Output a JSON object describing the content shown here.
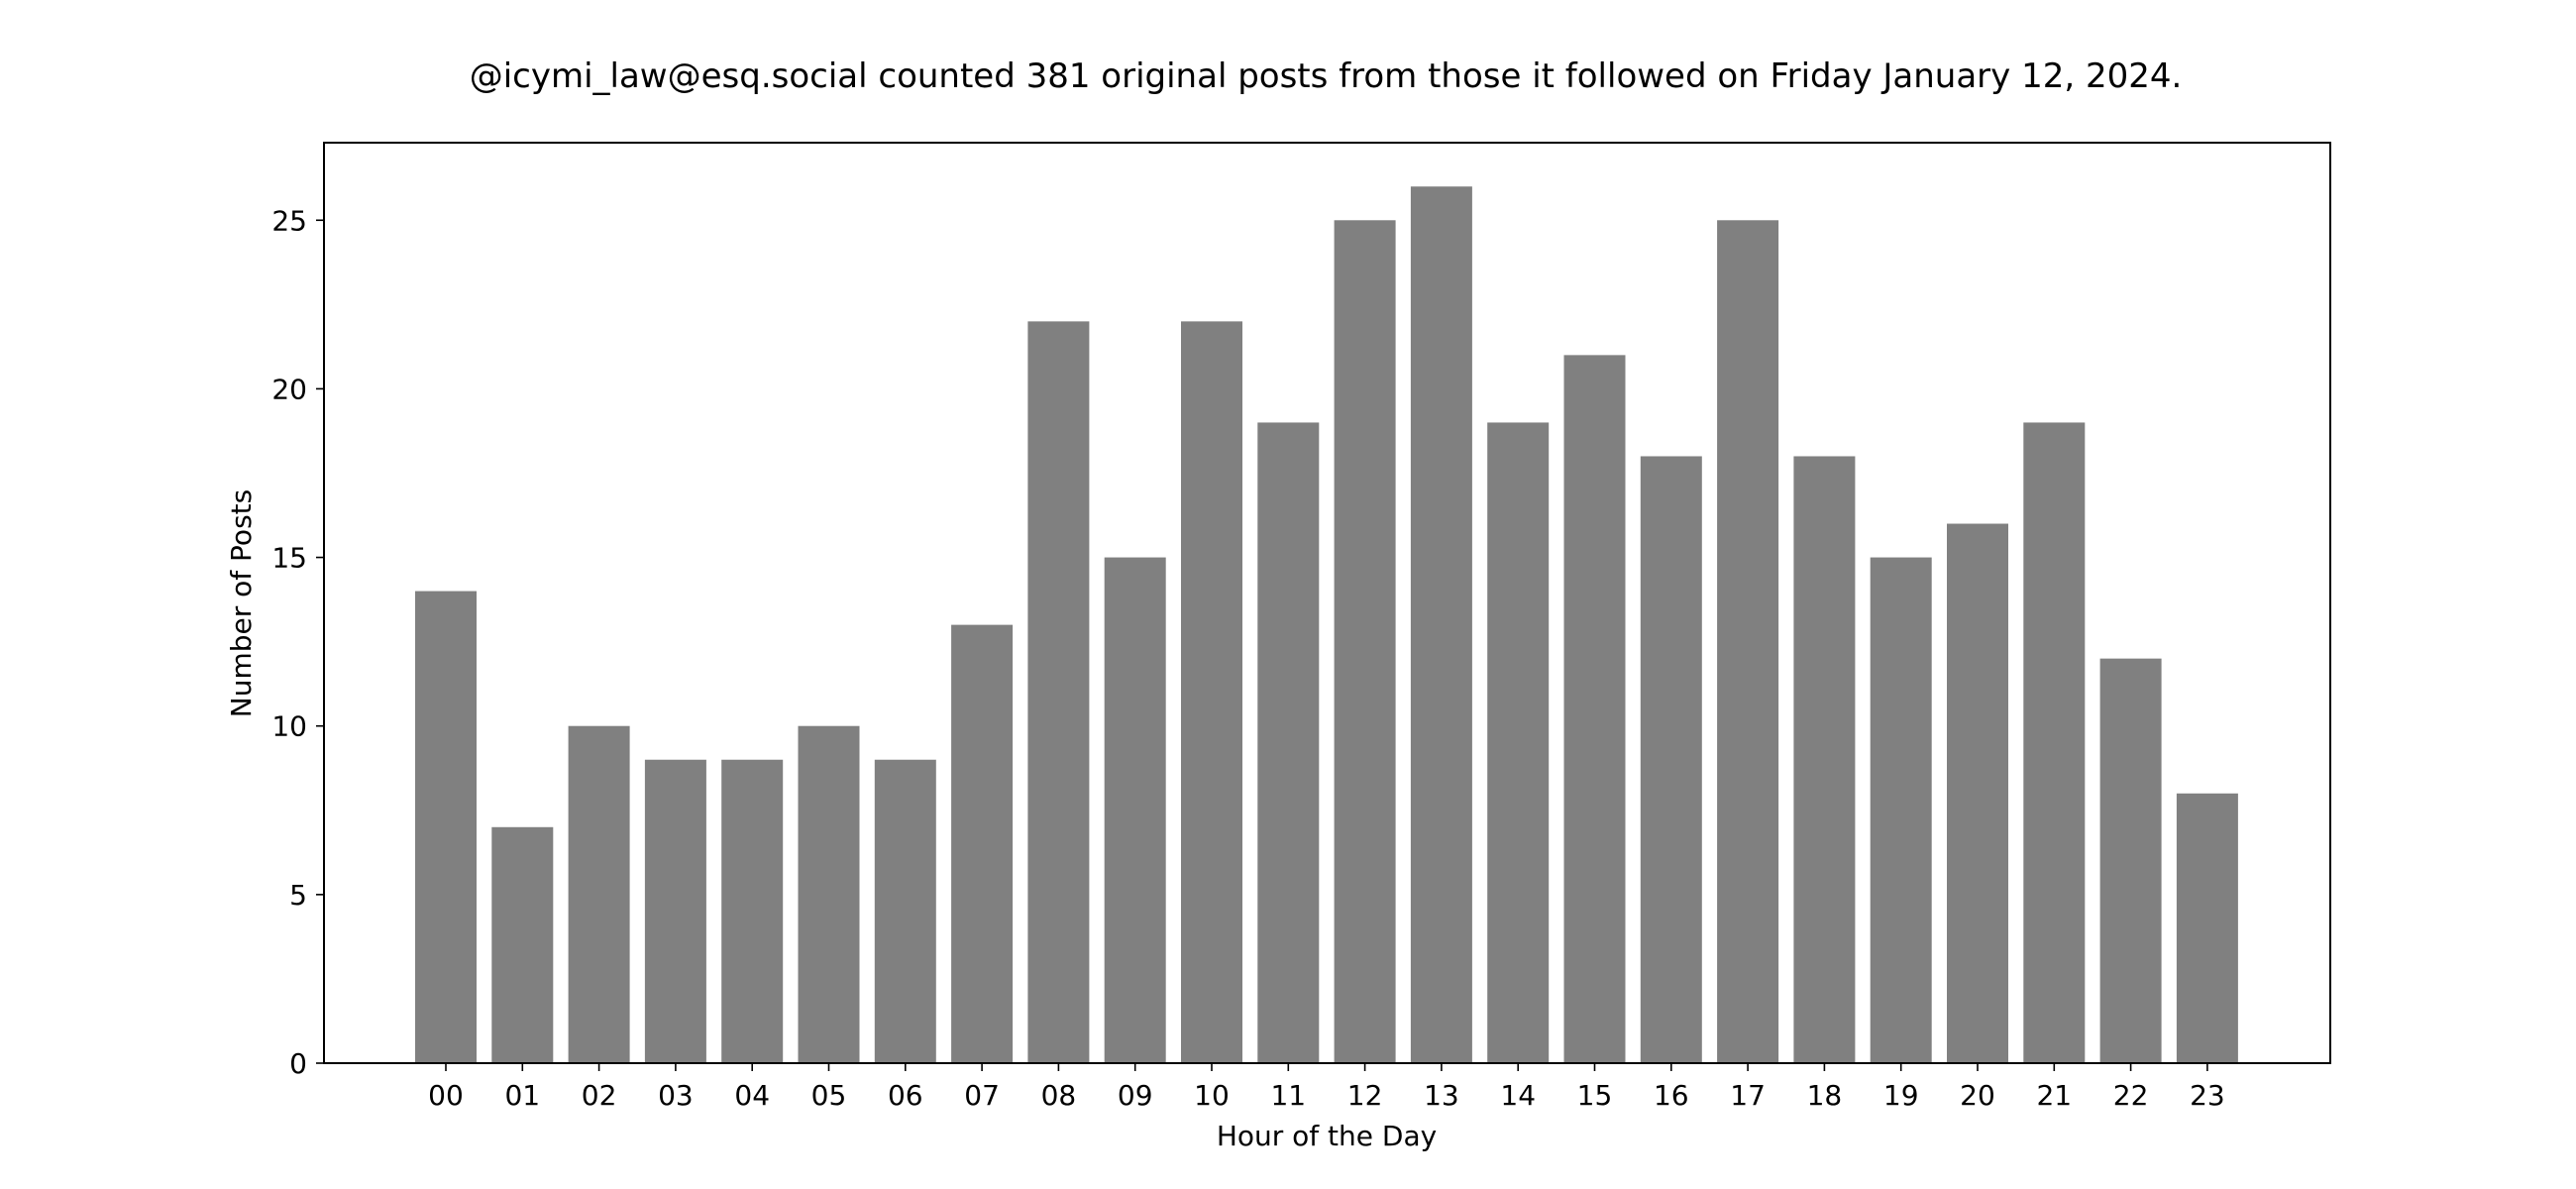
{
  "chart_data": {
    "type": "bar",
    "title": "@icymi_law@esq.social counted 381 original posts from those it followed on Friday January 12, 2024.",
    "xlabel": "Hour of the Day",
    "ylabel": "Number of Posts",
    "categories": [
      "00",
      "01",
      "02",
      "03",
      "04",
      "05",
      "06",
      "07",
      "08",
      "09",
      "10",
      "11",
      "12",
      "13",
      "14",
      "15",
      "16",
      "17",
      "18",
      "19",
      "20",
      "21",
      "22",
      "23"
    ],
    "values": [
      14,
      7,
      10,
      9,
      9,
      10,
      9,
      13,
      22,
      15,
      22,
      19,
      25,
      26,
      19,
      21,
      18,
      25,
      18,
      15,
      16,
      19,
      12,
      8
    ],
    "ylim": [
      0,
      27.3
    ],
    "yticks": [
      0,
      5,
      10,
      15,
      20,
      25
    ],
    "bar_color": "#808080",
    "grid": false,
    "legend": "none"
  }
}
